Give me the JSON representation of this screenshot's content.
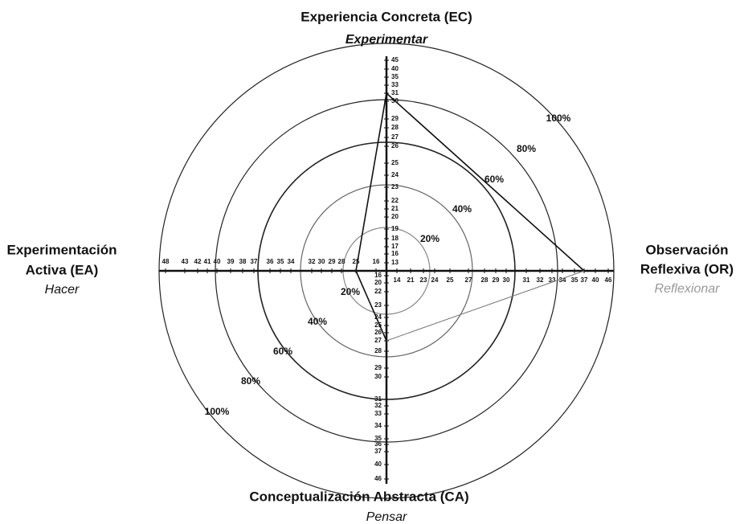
{
  "top": {
    "title": "Experiencia Concreta (EC)",
    "subtitle": "Experimentar",
    "ticks": [
      45,
      40,
      35,
      33,
      31,
      30,
      29,
      28,
      27,
      26,
      25,
      24,
      23,
      22,
      21,
      20,
      19,
      18,
      17,
      16,
      13
    ]
  },
  "right": {
    "title": [
      "Observación",
      "Reflexiva (OR)"
    ],
    "subtitle": "Reflexionar",
    "ticks": [
      14,
      21,
      23,
      24,
      25,
      27,
      28,
      29,
      30,
      31,
      32,
      33,
      34,
      35,
      37,
      40,
      46
    ]
  },
  "bottom": {
    "title": "Conceptualización Abstracta (CA)",
    "subtitle": "Pensar",
    "ticks": [
      16,
      20,
      22,
      23,
      24,
      25,
      26,
      27,
      28,
      29,
      30,
      31,
      32,
      33,
      34,
      35,
      36,
      37,
      40,
      46
    ]
  },
  "left": {
    "title": [
      "Experimentación",
      "Activa (EA)"
    ],
    "subtitle": "Hacer",
    "ticks": [
      48,
      43,
      42,
      41,
      40,
      39,
      38,
      37,
      36,
      35,
      34,
      32,
      30,
      29,
      28,
      25,
      16
    ]
  },
  "percent_labels": {
    "upper": [
      "100%",
      "80%",
      "60%",
      "40%",
      "20%"
    ],
    "lower": [
      "20%",
      "40%",
      "60%",
      "80%",
      "100%"
    ]
  },
  "profile": {
    "top": 31,
    "right": 37,
    "bottom": 27,
    "left": 25
  }
}
